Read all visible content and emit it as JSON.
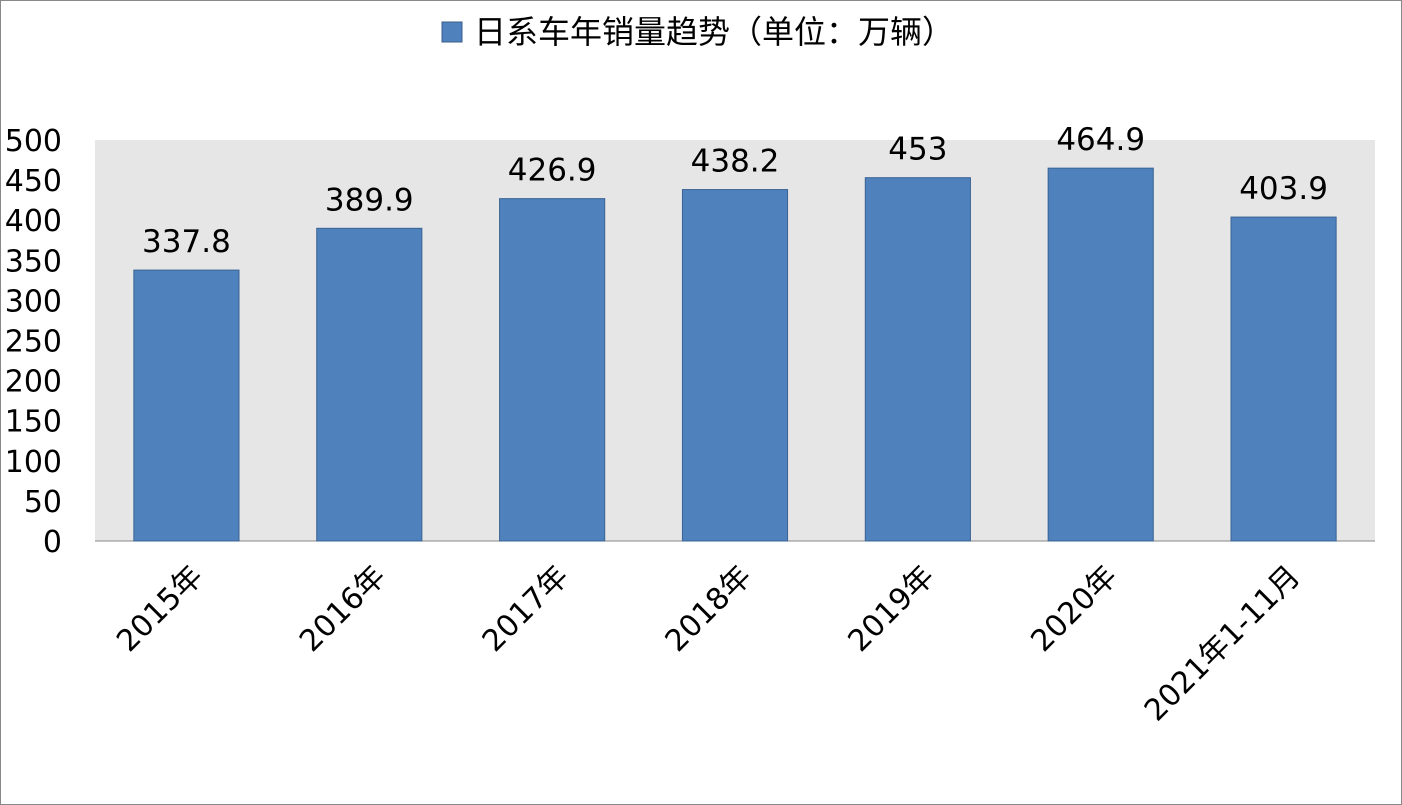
{
  "chart_data": {
    "type": "bar",
    "categories": [
      "2015年",
      "2016年",
      "2017年",
      "2018年",
      "2019年",
      "2020年",
      "2021年1-11月"
    ],
    "series": [
      {
        "name": "日系车年销量趋势（单位：万辆）",
        "color": "#4f81bd",
        "values": [
          337.8,
          389.9,
          426.9,
          438.2,
          453,
          464.9,
          403.9
        ]
      }
    ],
    "ylim": [
      0,
      500
    ],
    "yticks": [
      0,
      50,
      100,
      150,
      200,
      250,
      300,
      350,
      400,
      450,
      500
    ],
    "grid": false,
    "legend": "top"
  }
}
